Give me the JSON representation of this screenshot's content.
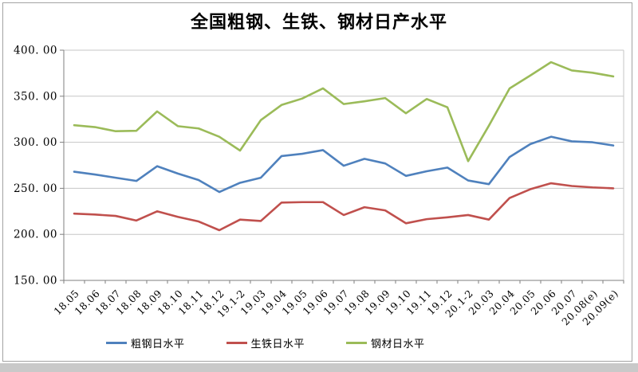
{
  "chart_data": {
    "type": "line",
    "title": "全国粗钢、生铁、钢材日产水平",
    "unit_note": "",
    "categories": [
      "18.05",
      "18.06",
      "18.07",
      "18.08",
      "18.09",
      "18.10",
      "18.11",
      "18.12",
      "19.1-2",
      "19.03",
      "19.04",
      "19.05",
      "19.06",
      "19.07",
      "19.08",
      "19.09",
      "19.10",
      "19.11",
      "19.12",
      "20.1-2",
      "20.03",
      "20.04",
      "20.05",
      "20.06",
      "20.07",
      "20.08(e)",
      "20.09(e)"
    ],
    "series": [
      {
        "key": "crude-steel",
        "name": "粗钢日水平",
        "color": "#4F81BD",
        "values": [
          268,
          265,
          261.5,
          258,
          274,
          266,
          259,
          246,
          256,
          261.5,
          285,
          287.5,
          291.5,
          274.5,
          282,
          277,
          263.5,
          268.5,
          272.5,
          258.5,
          254.5,
          284,
          298,
          306,
          301,
          300,
          296.5
        ]
      },
      {
        "key": "pig-iron",
        "name": "生铁日水平",
        "color": "#C0504D",
        "values": [
          222.5,
          221.5,
          220,
          215,
          225,
          219,
          214,
          204.5,
          216,
          214.5,
          234.5,
          235,
          235,
          221,
          229.5,
          226,
          212,
          216.5,
          218.5,
          221,
          216,
          239.5,
          249,
          255.5,
          252.5,
          251,
          250
        ]
      },
      {
        "key": "steel-products",
        "name": "钢材日水平",
        "color": "#9BBB59",
        "values": [
          318.5,
          316.5,
          312,
          312.5,
          333.5,
          317.5,
          315,
          306,
          291,
          324,
          340.5,
          347.5,
          358.5,
          341.5,
          344.5,
          348,
          331.5,
          347,
          338,
          279.5,
          318,
          358.5,
          372.5,
          387,
          378,
          375.5,
          371.5
        ]
      }
    ],
    "ylim": [
      150,
      400
    ],
    "ytick_step": 50,
    "ytick_labels": [
      "150. 00",
      "200. 00",
      "250. 00",
      "300. 00",
      "350. 00",
      "400. 00"
    ],
    "grid": true,
    "legend_position": "bottom",
    "colors": {
      "gridline": "#c6c6c6",
      "axis": "#7f7f7f",
      "text": "#000000",
      "frame_border": "#a3a3a3",
      "bottom_strip": "#c9c9c9"
    }
  }
}
